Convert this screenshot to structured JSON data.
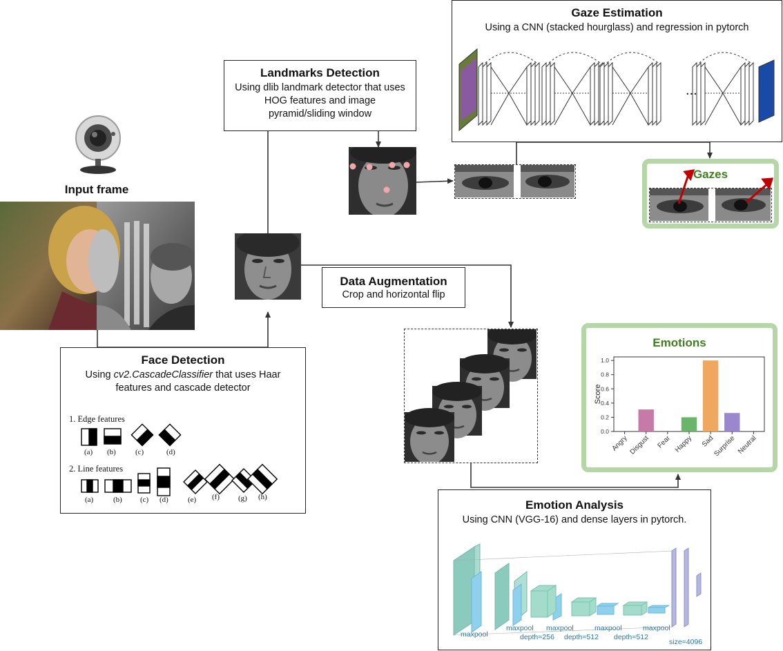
{
  "input": {
    "label": "Input frame",
    "icon": "webcam-icon"
  },
  "face_detection": {
    "title": "Face Detection",
    "sub_prefix": "Using ",
    "sub_italic": "cv2.CascadeClassifier",
    "sub_suffix": " that uses Haar features and cascade detector",
    "edge_heading": "1. Edge features",
    "edge_labels": [
      "(a)",
      "(b)",
      "(c)",
      "(d)"
    ],
    "line_heading": "2. Line features",
    "line_labels": [
      "(a)",
      "(b)",
      "(c)",
      "(d)",
      "(e)",
      "(f)",
      "(g)",
      "(h)"
    ]
  },
  "landmarks": {
    "title": "Landmarks Detection",
    "sub": "Using dlib landmark detector that uses HOG features and image pyramid/sliding window"
  },
  "gaze": {
    "title": "Gaze Estimation",
    "sub": "Using a CNN (stacked hourglass) and regression in pytorch",
    "ellipsis": "..."
  },
  "gazes": {
    "title": "Gazes",
    "arrow_color": "#c00000"
  },
  "augmentation": {
    "title": "Data Augmentation",
    "sub": "Crop and horizontal flip"
  },
  "emotions": {
    "title": "Emotions",
    "accent": "#3f7f1f",
    "frame_color": "#b5d6a6"
  },
  "emotion_analysis": {
    "title": "Emotion Analysis",
    "sub": "Using CNN (VGG-16) and dense layers in pytorch.",
    "labels": [
      "maxpool",
      "maxpool",
      "maxpool",
      "maxpool",
      "maxpool",
      "depth=256",
      "depth=512",
      "depth=512",
      "size=4096"
    ]
  },
  "chart_data": {
    "type": "bar",
    "title": "",
    "xlabel": "",
    "ylabel": "Score",
    "categories": [
      "Angry",
      "Disgust",
      "Fear",
      "Happy",
      "Sad",
      "Surprise",
      "Neutral"
    ],
    "values": [
      0.0,
      0.31,
      0.0,
      0.2,
      1.0,
      0.26,
      0.0
    ],
    "colors": [
      "#5b8fd1",
      "#c77aa8",
      "#5b8fd1",
      "#6ab56a",
      "#f0a760",
      "#9a87d0",
      "#5b8fd1"
    ],
    "ylim": [
      0,
      1.05
    ],
    "yticks": [
      "0.0",
      "0.2",
      "0.4",
      "0.6",
      "0.8",
      "1.0"
    ],
    "grid": false
  }
}
